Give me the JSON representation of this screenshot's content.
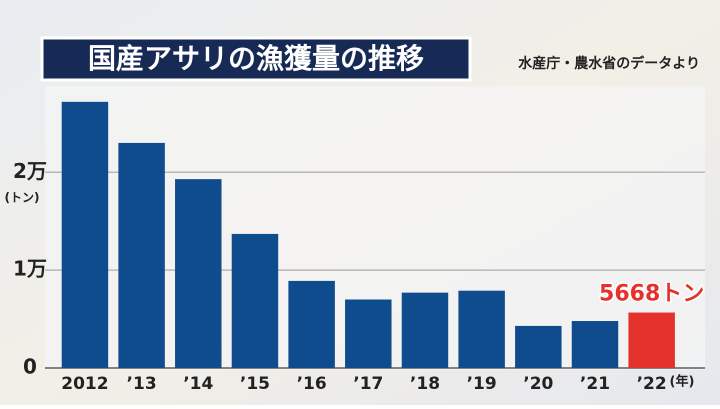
{
  "chart_data": {
    "type": "bar",
    "title": "国産アサリの漁獲量の推移",
    "source": "水産庁・農水省のデータより",
    "categories": [
      "2012",
      "’13",
      "’14",
      "’15",
      "’16",
      "’17",
      "’18",
      "’19",
      "’20",
      "’21",
      "’22"
    ],
    "values": [
      27200,
      23000,
      19300,
      13700,
      8900,
      7000,
      7700,
      7900,
      4300,
      4800,
      5668
    ],
    "value_labels": [
      null,
      null,
      null,
      null,
      null,
      null,
      null,
      null,
      null,
      null,
      "5668トン"
    ],
    "colors": [
      "#0f4c8e",
      "#0f4c8e",
      "#0f4c8e",
      "#0f4c8e",
      "#0f4c8e",
      "#0f4c8e",
      "#0f4c8e",
      "#0f4c8e",
      "#0f4c8e",
      "#0f4c8e",
      "#e4312b"
    ],
    "ylim": [
      0,
      28000
    ],
    "yticks": [
      0,
      {
        "value": 10000,
        "label": "1万"
      },
      {
        "value": 20000,
        "label": "2万"
      }
    ],
    "y_unit": "(トン)",
    "x_unit": "(年)",
    "grid": true
  }
}
